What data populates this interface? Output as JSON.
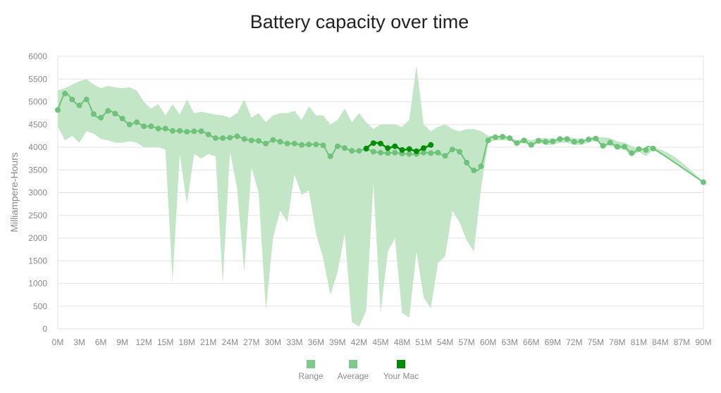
{
  "chart_data": {
    "type": "line",
    "title": "Battery capacity over time",
    "ylabel": "Milliampere-Hours",
    "xlabel": "",
    "ylim": [
      0,
      6000
    ],
    "xlim": [
      0,
      90
    ],
    "grid": true,
    "legend_position": "bottom",
    "y_ticks": [
      0,
      500,
      1000,
      1500,
      2000,
      2500,
      3000,
      3500,
      4000,
      4500,
      5000,
      5500,
      6000
    ],
    "x_ticks": [
      {
        "value": 0,
        "label": "0M"
      },
      {
        "value": 3,
        "label": "3M"
      },
      {
        "value": 6,
        "label": "6M"
      },
      {
        "value": 9,
        "label": "9M"
      },
      {
        "value": 12,
        "label": "12M"
      },
      {
        "value": 15,
        "label": "15M"
      },
      {
        "value": 18,
        "label": "18M"
      },
      {
        "value": 21,
        "label": "21M"
      },
      {
        "value": 24,
        "label": "24M"
      },
      {
        "value": 27,
        "label": "27M"
      },
      {
        "value": 30,
        "label": "30M"
      },
      {
        "value": 33,
        "label": "33M"
      },
      {
        "value": 36,
        "label": "36M"
      },
      {
        "value": 39,
        "label": "39M"
      },
      {
        "value": 42,
        "label": "42M"
      },
      {
        "value": 45,
        "label": "45M"
      },
      {
        "value": 48,
        "label": "48M"
      },
      {
        "value": 51,
        "label": "51M"
      },
      {
        "value": 54,
        "label": "54M"
      },
      {
        "value": 57,
        "label": "57M"
      },
      {
        "value": 60,
        "label": "60M"
      },
      {
        "value": 63,
        "label": "63M"
      },
      {
        "value": 66,
        "label": "66M"
      },
      {
        "value": 69,
        "label": "69M"
      },
      {
        "value": 72,
        "label": "72M"
      },
      {
        "value": 75,
        "label": "75M"
      },
      {
        "value": 78,
        "label": "78M"
      },
      {
        "value": 81,
        "label": "81M"
      },
      {
        "value": 84,
        "label": "84M"
      },
      {
        "value": 87,
        "label": "87M"
      },
      {
        "value": 90,
        "label": "90M"
      }
    ],
    "legend": [
      {
        "label": "Range",
        "color": "#7fc98a"
      },
      {
        "label": "Average",
        "color": "#7fc98a"
      },
      {
        "label": "Your Mac",
        "color": "#008c00"
      }
    ],
    "colors": {
      "range_fill": "#c2e6c6",
      "average_line": "#6fc27a",
      "your_mac": "#008c00",
      "grid": "#e3e3e3",
      "axis_text": "#8a8a8a",
      "title_text": "#222222"
    },
    "range": {
      "x": [
        0,
        1,
        2,
        3,
        4,
        5,
        6,
        7,
        8,
        9,
        10,
        11,
        12,
        13,
        14,
        15,
        16,
        17,
        18,
        19,
        20,
        21,
        22,
        23,
        24,
        25,
        26,
        27,
        28,
        29,
        30,
        31,
        32,
        33,
        34,
        35,
        36,
        37,
        38,
        39,
        40,
        41,
        42,
        43,
        44,
        45,
        46,
        47,
        48,
        49,
        50,
        51,
        52,
        53,
        54,
        55,
        56,
        57,
        58,
        59,
        60,
        61,
        62,
        63,
        64,
        65,
        66,
        67,
        68,
        69,
        70,
        71,
        72,
        73,
        74,
        75,
        76,
        77,
        78,
        79,
        80,
        81,
        82,
        83
      ],
      "high": [
        5250,
        5300,
        5380,
        5450,
        5500,
        5380,
        5300,
        5350,
        5320,
        5300,
        5320,
        5250,
        5000,
        4850,
        4950,
        4700,
        4950,
        4720,
        5050,
        4750,
        4780,
        4750,
        4720,
        4700,
        4650,
        4750,
        5050,
        4650,
        4750,
        4550,
        4700,
        4750,
        4750,
        4800,
        4600,
        4900,
        4700,
        4700,
        4500,
        4600,
        4850,
        4550,
        4750,
        4550,
        4400,
        4500,
        4500,
        4500,
        4450,
        4600,
        5800,
        4500,
        4350,
        4450,
        4500,
        4400,
        4350,
        4400,
        4400,
        4350,
        4250,
        4250,
        4250,
        4220,
        4150,
        4200,
        4150,
        4200,
        4200,
        4180,
        4200,
        4220,
        4200,
        4180,
        4150,
        4220,
        4220,
        4200,
        4130,
        4100,
        4030,
        3970,
        3980,
        3980
      ],
      "low": [
        4450,
        4150,
        4250,
        4100,
        4350,
        4300,
        4180,
        4150,
        4100,
        4100,
        4130,
        4100,
        4000,
        4000,
        4000,
        3950,
        1050,
        3850,
        2750,
        3850,
        3750,
        3850,
        3800,
        1000,
        3900,
        3100,
        1250,
        3550,
        3000,
        400,
        2000,
        2600,
        2350,
        3400,
        2950,
        3050,
        2100,
        1550,
        750,
        1250,
        2100,
        150,
        50,
        400,
        3200,
        350,
        1700,
        2000,
        350,
        250,
        1700,
        700,
        450,
        1450,
        1600,
        2600,
        2350,
        1950,
        1700,
        3100,
        4100,
        4150,
        4150,
        4150,
        4050,
        4100,
        4000,
        4100,
        4050,
        4050,
        4100,
        4100,
        4050,
        4050,
        4100,
        4150,
        4000,
        4050,
        3950,
        3950,
        3800,
        3900,
        3800,
        3950
      ]
    },
    "average": {
      "x": [
        0,
        1,
        2,
        3,
        4,
        5,
        6,
        7,
        8,
        9,
        10,
        11,
        12,
        13,
        14,
        15,
        16,
        17,
        18,
        19,
        20,
        21,
        22,
        23,
        24,
        25,
        26,
        27,
        28,
        29,
        30,
        31,
        32,
        33,
        34,
        35,
        36,
        37,
        38,
        39,
        40,
        41,
        42,
        43,
        44,
        45,
        46,
        47,
        48,
        49,
        50,
        51,
        52,
        53,
        54,
        55,
        56,
        57,
        58,
        59,
        60,
        61,
        62,
        63,
        64,
        65,
        66,
        67,
        68,
        69,
        70,
        71,
        72,
        73,
        74,
        75,
        76,
        77,
        78,
        79,
        80,
        81,
        82,
        83,
        90
      ],
      "values": [
        4820,
        5180,
        5050,
        4920,
        5050,
        4730,
        4650,
        4800,
        4740,
        4630,
        4500,
        4550,
        4460,
        4460,
        4410,
        4410,
        4360,
        4360,
        4340,
        4350,
        4350,
        4280,
        4200,
        4200,
        4210,
        4240,
        4180,
        4150,
        4140,
        4080,
        4160,
        4120,
        4080,
        4080,
        4050,
        4060,
        4060,
        4040,
        3800,
        4020,
        3980,
        3920,
        3920,
        3960,
        3900,
        3880,
        3870,
        3880,
        3860,
        3850,
        3850,
        3880,
        3870,
        3880,
        3810,
        3950,
        3900,
        3660,
        3490,
        3580,
        4150,
        4220,
        4230,
        4200,
        4090,
        4150,
        4050,
        4140,
        4120,
        4130,
        4180,
        4180,
        4120,
        4130,
        4170,
        4190,
        4030,
        4100,
        4010,
        4010,
        3870,
        3960,
        3940,
        3970,
        3230
      ]
    },
    "your_mac": {
      "x": [
        43,
        44,
        45,
        46,
        47,
        48,
        49,
        50,
        51,
        52
      ],
      "values": [
        3970,
        4090,
        4080,
        3980,
        4020,
        3940,
        3960,
        3910,
        3980,
        4050
      ]
    }
  }
}
